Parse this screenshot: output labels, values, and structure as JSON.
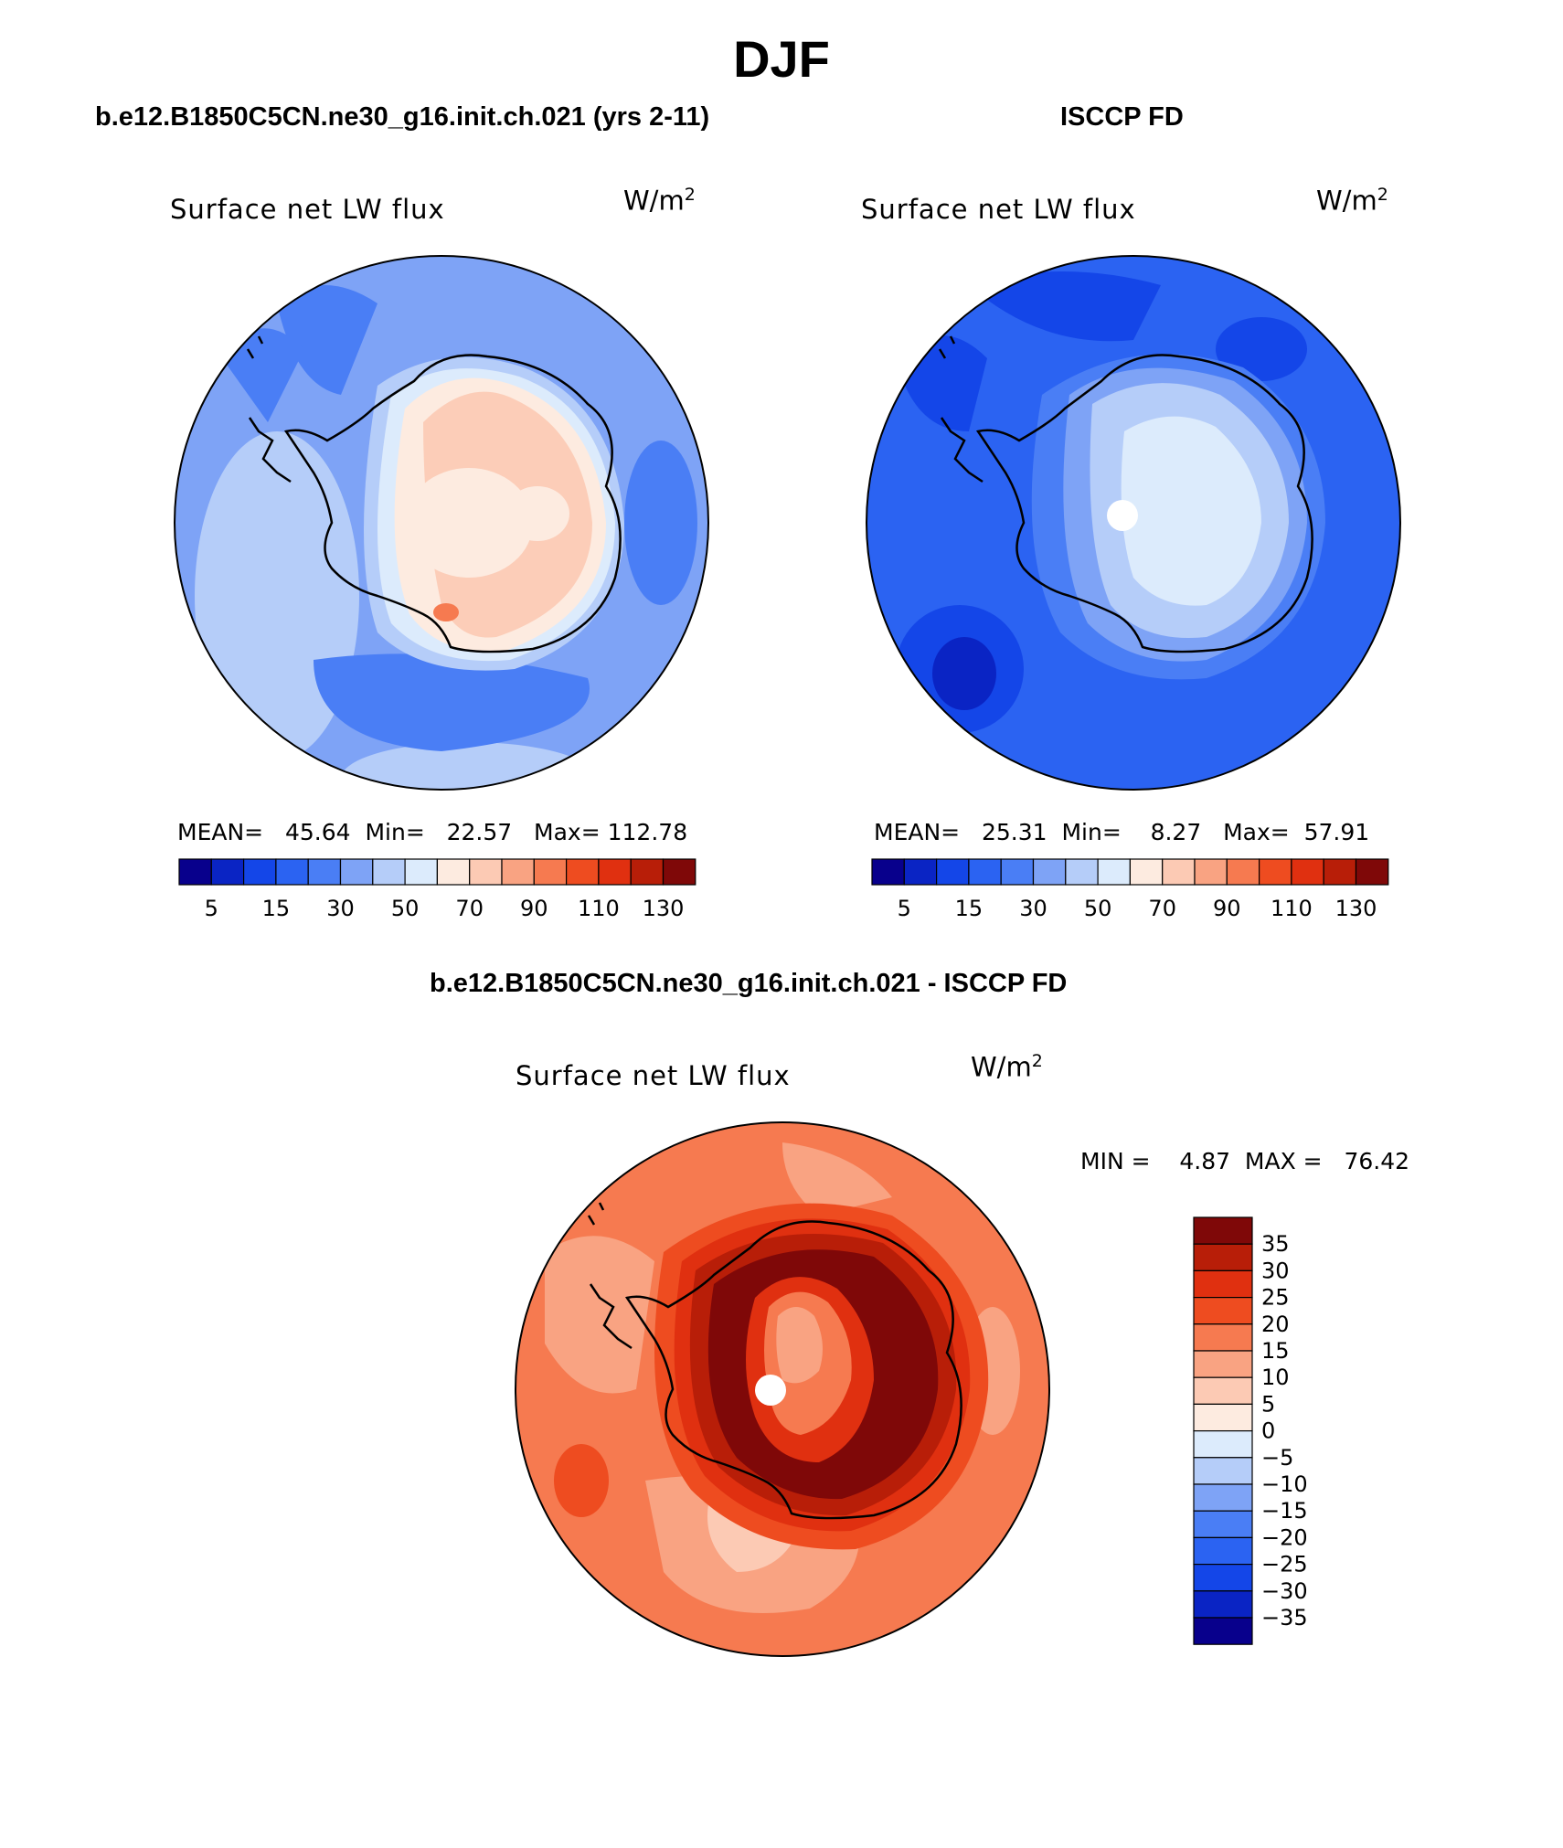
{
  "page": {
    "title": "DJF"
  },
  "panels": [
    {
      "id": "model",
      "title": "b.e12.B1850C5CN.ne30_g16.init.ch.021 (yrs 2-11)",
      "variable": "Surface net LW flux",
      "units_base": "W/m",
      "units_exp": "2",
      "stats": {
        "mean_label": "MEAN=",
        "mean": "45.64",
        "min_label": "Min=",
        "min": "22.57",
        "max_label": "Max=",
        "max": "112.78"
      }
    },
    {
      "id": "obs",
      "title": "ISCCP FD",
      "variable": "Surface net LW flux",
      "units_base": "W/m",
      "units_exp": "2",
      "stats": {
        "mean_label": "MEAN=",
        "mean": "25.31",
        "min_label": "Min=",
        "min": "8.27",
        "max_label": "Max=",
        "max": "57.91"
      }
    },
    {
      "id": "diff",
      "title": "b.e12.B1850C5CN.ne30_g16.init.ch.021 - ISCCP FD",
      "variable": "Surface net LW flux",
      "units_base": "W/m",
      "units_exp": "2",
      "stats": {
        "min_label": "MIN =",
        "min": "4.87",
        "max_label": "MAX =",
        "max": "76.42"
      }
    }
  ],
  "colorbars": {
    "absolute": {
      "colors": [
        "#08008c",
        "#0a24c4",
        "#1446e8",
        "#2b63f2",
        "#4a7ef5",
        "#7ea3f6",
        "#b5cdf9",
        "#dcebfc",
        "#fdebe0",
        "#fccab4",
        "#f9a382",
        "#f67a50",
        "#ee4c20",
        "#e03010",
        "#b81e08",
        "#7f0808"
      ],
      "labels": [
        "5",
        "15",
        "30",
        "50",
        "70",
        "90",
        "110",
        "130"
      ]
    },
    "difference": {
      "colors": [
        "#08008c",
        "#0a24c4",
        "#1446e8",
        "#2b63f2",
        "#4a7ef5",
        "#7ea3f6",
        "#b5cdf9",
        "#dcebfc",
        "#fdebe0",
        "#fccab4",
        "#f9a382",
        "#f67a50",
        "#ee4c20",
        "#e03010",
        "#b81e08",
        "#7f0808"
      ],
      "labels": [
        "35",
        "30",
        "25",
        "20",
        "15",
        "10",
        "5",
        "0",
        "−5",
        "−10",
        "−15",
        "−20",
        "−25",
        "−30",
        "−35"
      ]
    }
  }
}
